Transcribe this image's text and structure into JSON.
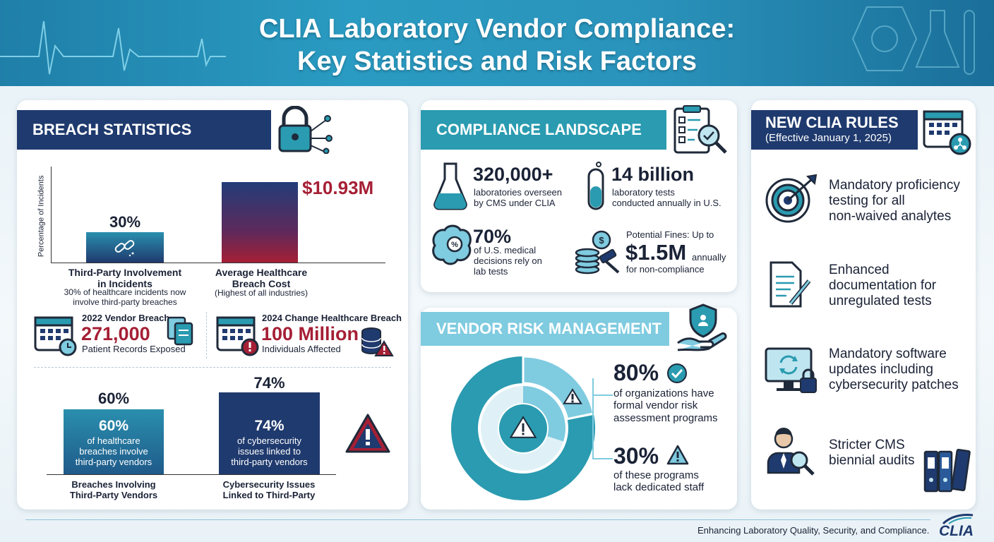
{
  "header": {
    "title_line1": "CLIA Laboratory Vendor Compliance:",
    "title_line2": "Key Statistics and Risk Factors"
  },
  "breach": {
    "banner": "BREACH STATISTICS",
    "y_axis_label": "Percentage of Incidents",
    "bar1_value": "30%",
    "bar1_label_line1": "Third-Party Involvement",
    "bar1_label_line2": "in Incidents",
    "bar1_desc_line1": "30% of healthcare incidents now",
    "bar1_desc_line2": "involve third-party breaches",
    "bar2_value": "$10.93M",
    "bar2_label_line1": "Average Healthcare",
    "bar2_label_line2": "Breach Cost",
    "bar2_desc": "(Highest of all industries)",
    "vendor_title": "2022 Vendor Breach",
    "vendor_value": "271,000",
    "vendor_desc": "Patient Records Exposed",
    "change_title": "2024 Change Healthcare Breach",
    "change_value": "100 Million",
    "change_desc": "Individuals Affected",
    "bar3_top": "60%",
    "bar3_inner_value": "60%",
    "bar3_inner_line1": "of healthcare",
    "bar3_inner_line2": "breaches involve",
    "bar3_inner_line3": "third-party vendors",
    "bar3_label_line1": "Breaches Involving",
    "bar3_label_line2": "Third-Party Vendors",
    "bar4_top": "74%",
    "bar4_inner_value": "74%",
    "bar4_inner_line1": "of cybersecurity",
    "bar4_inner_line2": "issues linked to",
    "bar4_inner_line3": "third-party vendors",
    "bar4_label_line1": "Cybersecurity Issues",
    "bar4_label_line2": "Linked to Third-Party"
  },
  "compliance": {
    "banner": "COMPLIANCE LANDSCAPE",
    "labs_value": "320,000+",
    "labs_line1": "laboratories overseen",
    "labs_line2": "by CMS under CLIA",
    "tests_value": "14 billion",
    "tests_line1": "laboratory tests",
    "tests_line2": "conducted annually in U.S.",
    "decisions_value": "70%",
    "decisions_line1": "of U.S. medical",
    "decisions_line2": "decisions rely on",
    "decisions_line3": "lab tests",
    "fines_prefix": "Potential Fines: Up to",
    "fines_value": "$1.5M",
    "fines_suffix": "annually",
    "fines_line3": "for non-compliance"
  },
  "vendor_risk": {
    "banner": "VENDOR RISK MANAGEMENT",
    "stat1_value": "80%",
    "stat1_line1": "of organizations have",
    "stat1_line2": "formal vendor risk",
    "stat1_line3": "assessment programs",
    "stat2_value": "30%",
    "stat2_line1": "of these programs",
    "stat2_line2": "lack dedicated staff"
  },
  "new_rules": {
    "banner_title": "NEW CLIA RULES",
    "banner_subtitle": "(Effective January 1, 2025)",
    "rule1_line1": "Mandatory proficiency",
    "rule1_line2": "testing for all",
    "rule1_line3": "non-waived analytes",
    "rule2_line1": "Enhanced",
    "rule2_line2": "documentation for",
    "rule2_line3": "unregulated tests",
    "rule3_line1": "Mandatory software",
    "rule3_line2": "updates including",
    "rule3_line3": "cybersecurity patches",
    "rule4_line1": "Stricter CMS",
    "rule4_line2": "biennial audits"
  },
  "footer": {
    "tagline": "Enhancing Laboratory Quality, Security, and Compliance.",
    "logo_text": "CLIA"
  },
  "colors": {
    "navy": "#1f3a6e",
    "teal": "#2a9bb0",
    "red": "#a51f35",
    "light_teal": "#7fcbe0"
  },
  "chart_data": [
    {
      "type": "bar",
      "categories": [
        "Third-Party Involvement in Incidents",
        "Average Healthcare Breach Cost"
      ],
      "values": [
        30,
        10.93
      ],
      "ylabel": "Percentage of Incidents"
    },
    {
      "type": "bar",
      "categories": [
        "Breaches Involving Third-Party Vendors",
        "Cybersecurity Issues Linked to Third-Party"
      ],
      "values": [
        60,
        74
      ]
    },
    {
      "type": "pie",
      "categories": [
        "formal vendor risk assessment programs",
        "lack dedicated staff"
      ],
      "values": [
        80,
        30
      ]
    }
  ]
}
